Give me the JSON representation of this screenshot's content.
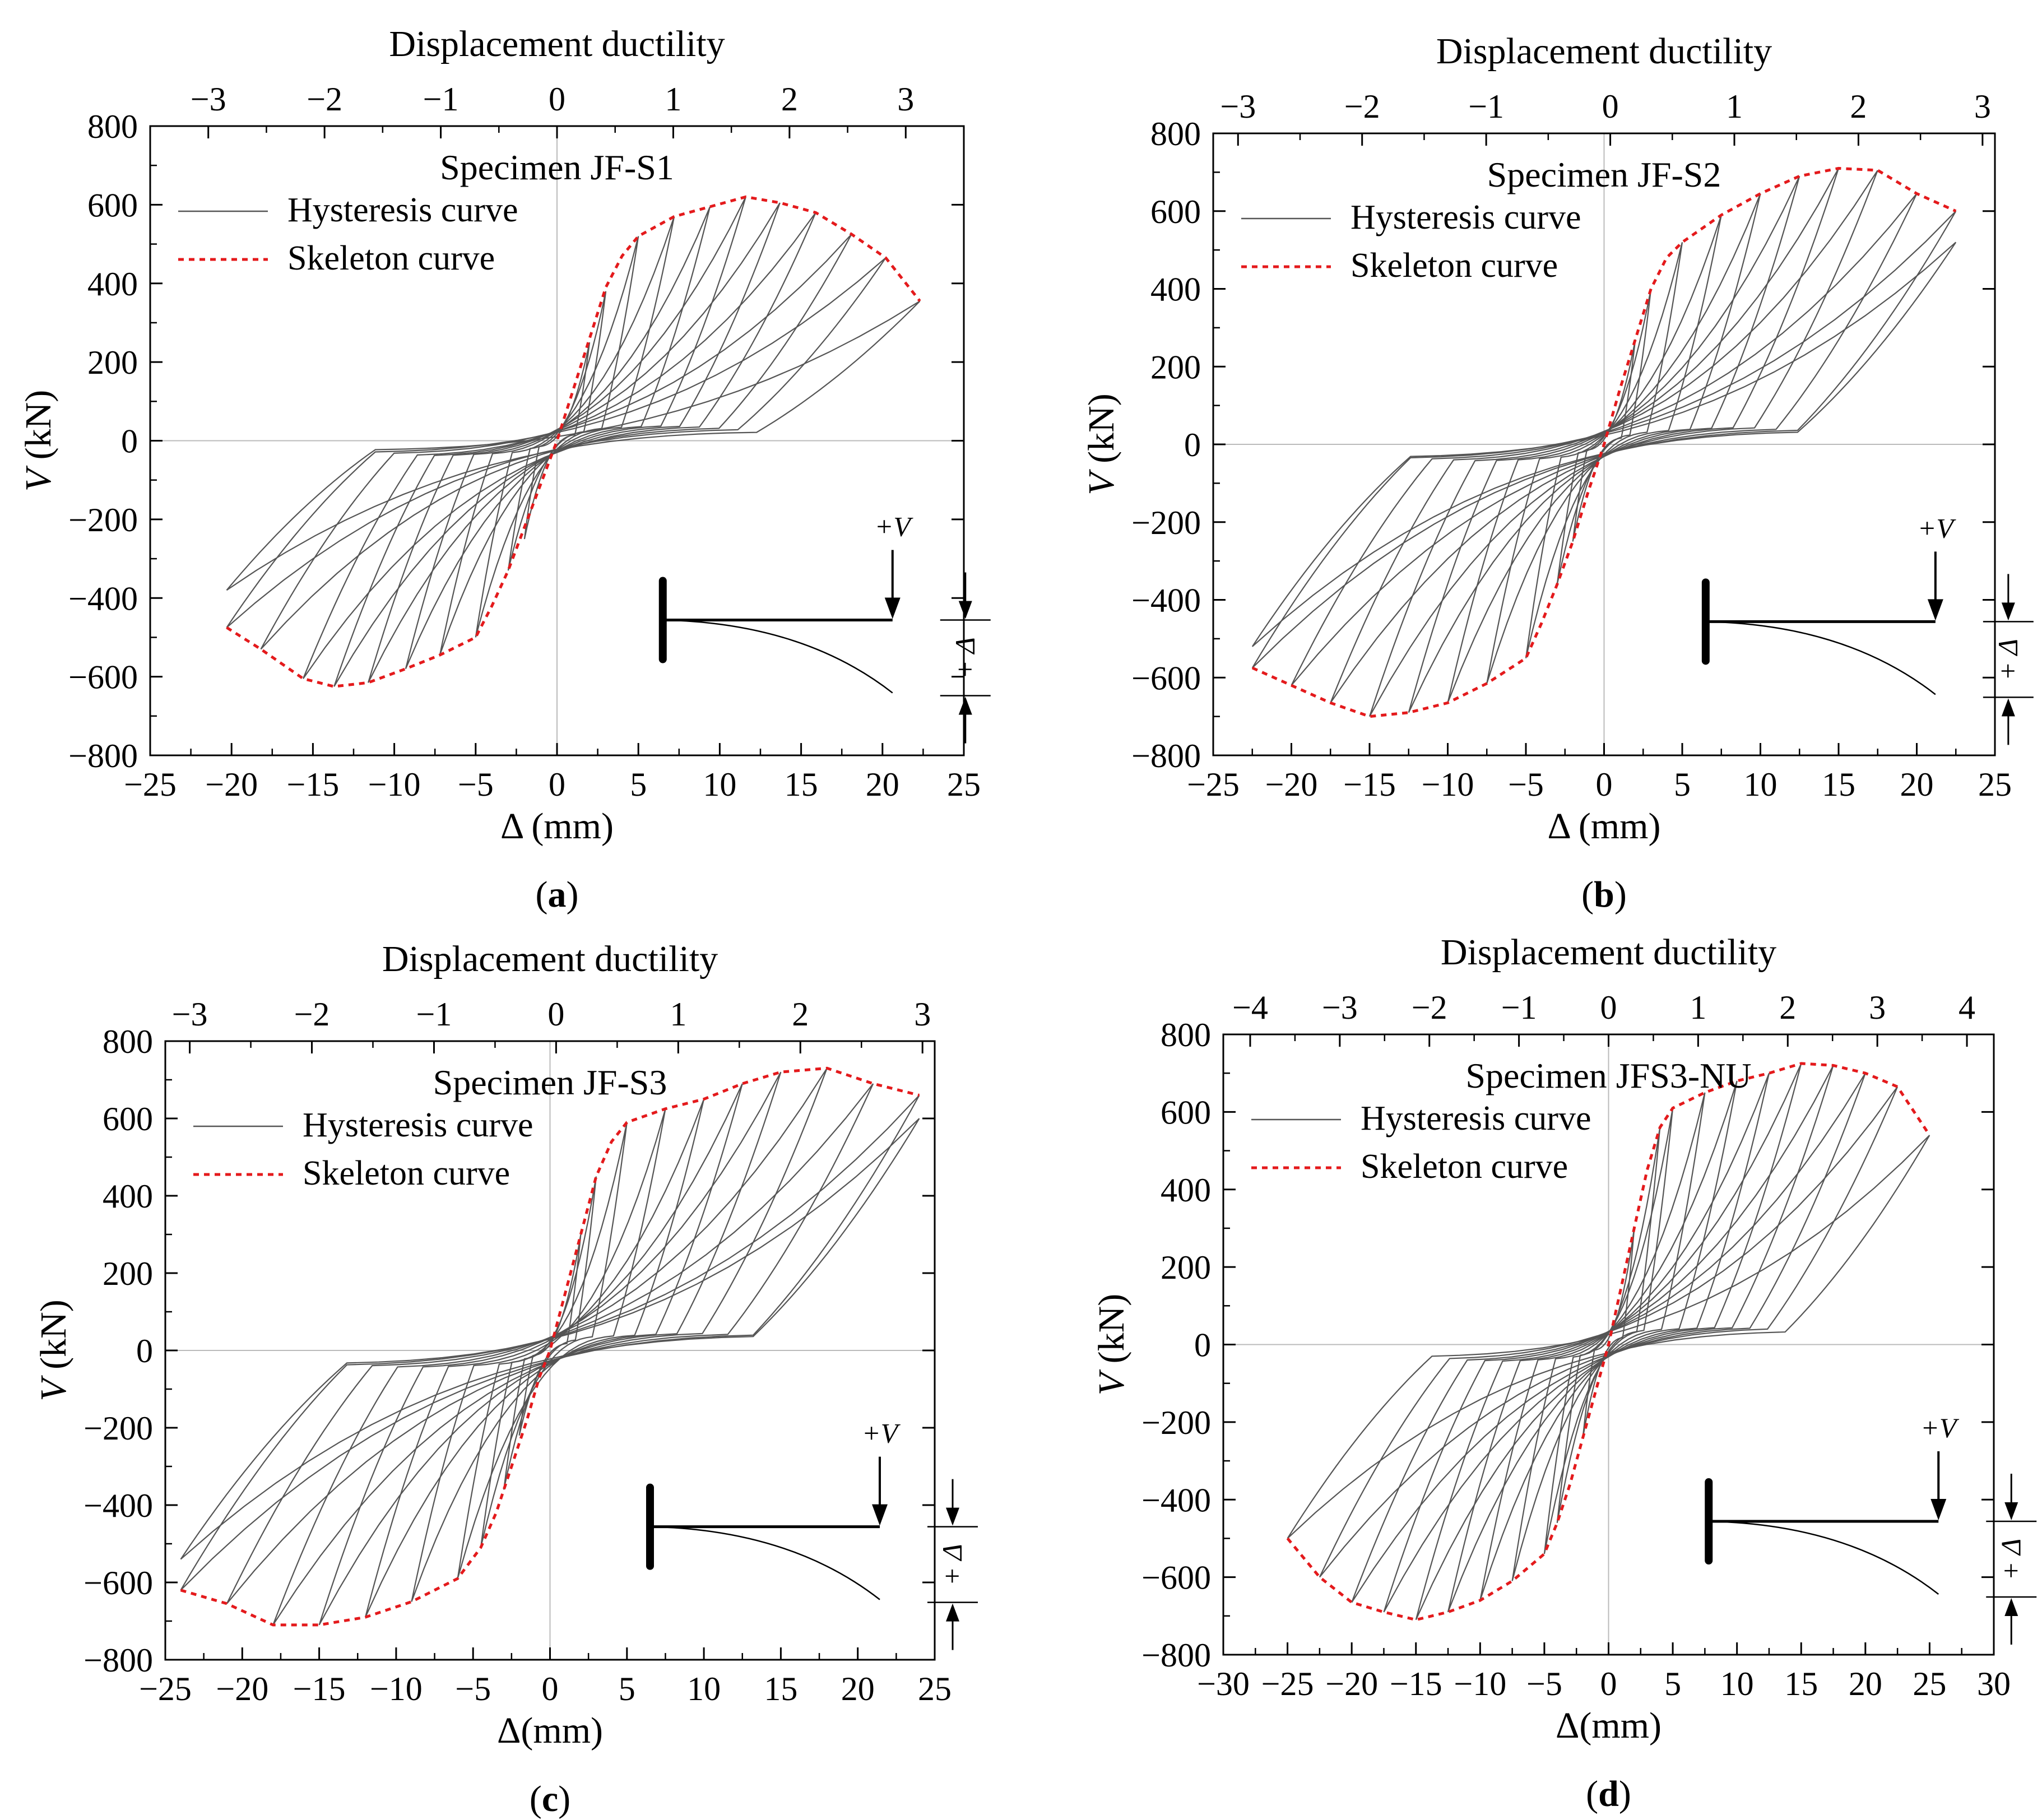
{
  "colors": {
    "hysteresis": "#555555",
    "skeleton": "#e41a1c",
    "zero_line": "#bbbbbb",
    "axes": "#000000"
  },
  "chart_data": [
    {
      "type": "line",
      "id": "a",
      "title": "Specimen JF-S1",
      "panel_label": "a",
      "xlabel_top": "Displacement ductility",
      "ylabel_var": "V",
      "ylabel_unit": " (kN)",
      "xlabel": "Δ (mm)",
      "xlim": [
        -25,
        25
      ],
      "ylim": [
        -800,
        800
      ],
      "top_xlim": [
        -3.5,
        3.5
      ],
      "x_ticks": [
        -25,
        -20,
        -15,
        -10,
        -5,
        0,
        5,
        10,
        15,
        20,
        25
      ],
      "y_ticks": [
        -800,
        -600,
        -400,
        -200,
        0,
        200,
        400,
        600,
        800
      ],
      "top_ticks": [
        -3,
        -2,
        -1,
        0,
        1,
        2,
        3
      ],
      "legend": [
        "Hysteresis curve",
        "Skeleton curve"
      ],
      "skeleton": {
        "x": [
          -20.3,
          -18.2,
          -15.6,
          -13.7,
          -11.6,
          -9.3,
          -7.2,
          -5.0,
          -4.0,
          -3.0,
          -2.0,
          -1.0,
          0,
          1.0,
          2.0,
          3.0,
          4.0,
          5.0,
          7.2,
          9.4,
          11.6,
          13.7,
          15.9,
          18.1,
          20.2,
          22.3
        ],
        "y": [
          -475,
          -530,
          -605,
          -625,
          -615,
          -580,
          -545,
          -500,
          -420,
          -330,
          -220,
          -110,
          0,
          130,
          260,
          390,
          470,
          520,
          570,
          595,
          620,
          605,
          580,
          525,
          465,
          355
        ]
      },
      "loops": [
        {
          "peak_pos": [
            2.0,
            250
          ],
          "peak_neg": [
            -2.0,
            -250
          ]
        },
        {
          "peak_pos": [
            3.0,
            380
          ],
          "peak_neg": [
            -3.0,
            -330
          ]
        },
        {
          "peak_pos": [
            5.0,
            520
          ],
          "peak_neg": [
            -5.0,
            -500
          ]
        },
        {
          "peak_pos": [
            7.2,
            570
          ],
          "peak_neg": [
            -7.2,
            -545
          ]
        },
        {
          "peak_pos": [
            9.4,
            595
          ],
          "peak_neg": [
            -9.3,
            -580
          ]
        },
        {
          "peak_pos": [
            11.6,
            620
          ],
          "peak_neg": [
            -11.6,
            -615
          ]
        },
        {
          "peak_pos": [
            13.7,
            605
          ],
          "peak_neg": [
            -13.7,
            -625
          ]
        },
        {
          "peak_pos": [
            15.9,
            580
          ],
          "peak_neg": [
            -15.6,
            -605
          ]
        },
        {
          "peak_pos": [
            18.1,
            525
          ],
          "peak_neg": [
            -18.2,
            -530
          ]
        },
        {
          "peak_pos": [
            20.2,
            465
          ],
          "peak_neg": [
            -20.3,
            -475
          ]
        },
        {
          "peak_pos": [
            22.3,
            355
          ],
          "peak_neg": [
            -20.3,
            -380
          ]
        }
      ],
      "diagram": {
        "load_label": "+V",
        "disp_label": "+ Δ"
      }
    },
    {
      "type": "line",
      "id": "b",
      "title": "Specimen JF-S2",
      "panel_label": "b",
      "xlabel_top": "Displacement ductility",
      "ylabel_var": "V",
      "ylabel_unit": " (kN)",
      "xlabel": "Δ (mm)",
      "xlim": [
        -25,
        25
      ],
      "ylim": [
        -800,
        800
      ],
      "top_xlim": [
        -3.2,
        3.1
      ],
      "x_ticks": [
        -25,
        -20,
        -15,
        -10,
        -5,
        0,
        5,
        10,
        15,
        20,
        25
      ],
      "y_ticks": [
        -800,
        -600,
        -400,
        -200,
        0,
        200,
        400,
        600,
        800
      ],
      "top_ticks": [
        -3,
        -2,
        -1,
        0,
        1,
        2,
        3
      ],
      "legend": [
        "Hysteresis curve",
        "Skeleton curve"
      ],
      "skeleton": {
        "x": [
          -22.5,
          -20.0,
          -17.5,
          -15.0,
          -12.5,
          -10.0,
          -7.5,
          -5.0,
          -4.0,
          -3.0,
          -2.0,
          -1.0,
          0,
          1.0,
          2.0,
          3.0,
          4.0,
          5.0,
          7.5,
          10.0,
          12.5,
          15.0,
          17.5,
          20.0,
          22.5
        ],
        "y": [
          -575,
          -620,
          -665,
          -700,
          -690,
          -665,
          -615,
          -550,
          -460,
          -360,
          -250,
          -120,
          0,
          140,
          270,
          400,
          480,
          520,
          590,
          645,
          690,
          710,
          705,
          645,
          600
        ]
      },
      "loops": [
        {
          "peak_pos": [
            2.0,
            270
          ],
          "peak_neg": [
            -2.0,
            -250
          ]
        },
        {
          "peak_pos": [
            3.0,
            400
          ],
          "peak_neg": [
            -3.0,
            -360
          ]
        },
        {
          "peak_pos": [
            5.0,
            520
          ],
          "peak_neg": [
            -5.0,
            -550
          ]
        },
        {
          "peak_pos": [
            7.5,
            590
          ],
          "peak_neg": [
            -7.5,
            -615
          ]
        },
        {
          "peak_pos": [
            10.0,
            645
          ],
          "peak_neg": [
            -10.0,
            -665
          ]
        },
        {
          "peak_pos": [
            12.5,
            690
          ],
          "peak_neg": [
            -12.5,
            -690
          ]
        },
        {
          "peak_pos": [
            15.0,
            710
          ],
          "peak_neg": [
            -15.0,
            -700
          ]
        },
        {
          "peak_pos": [
            17.5,
            705
          ],
          "peak_neg": [
            -17.5,
            -665
          ]
        },
        {
          "peak_pos": [
            20.0,
            645
          ],
          "peak_neg": [
            -20.0,
            -620
          ]
        },
        {
          "peak_pos": [
            22.5,
            600
          ],
          "peak_neg": [
            -22.5,
            -575
          ]
        },
        {
          "peak_pos": [
            22.5,
            520
          ],
          "peak_neg": [
            -22.5,
            -520
          ]
        }
      ],
      "diagram": {
        "load_label": "+V",
        "disp_label": "+ Δ"
      }
    },
    {
      "type": "line",
      "id": "c",
      "title": "Specimen JF-S3",
      "panel_label": "c",
      "xlabel_top": "Displacement ductility",
      "ylabel_var": "V",
      "ylabel_unit": " (kN)",
      "xlabel": "Δ(mm)",
      "xlim": [
        -25,
        25
      ],
      "ylim": [
        -800,
        800
      ],
      "top_xlim": [
        -3.2,
        3.1
      ],
      "x_ticks": [
        -25,
        -20,
        -15,
        -10,
        -5,
        0,
        5,
        10,
        15,
        20,
        25
      ],
      "y_ticks": [
        -800,
        -600,
        -400,
        -200,
        0,
        200,
        400,
        600,
        800
      ],
      "top_ticks": [
        -3,
        -2,
        -1,
        0,
        1,
        2,
        3
      ],
      "legend": [
        "Hysteresis curve",
        "Skeleton curve"
      ],
      "skeleton": {
        "x": [
          -24.0,
          -21.0,
          -18.0,
          -15.0,
          -12.0,
          -9.0,
          -6.0,
          -4.5,
          -3.5,
          -2.5,
          -1.5,
          -0.7,
          0,
          1.0,
          2.0,
          3.0,
          4.0,
          5.0,
          7.5,
          10.0,
          12.5,
          15.0,
          18.0,
          21.0,
          24.0
        ],
        "y": [
          -620,
          -655,
          -710,
          -710,
          -690,
          -650,
          -590,
          -510,
          -420,
          -300,
          -180,
          -70,
          0,
          150,
          300,
          450,
          540,
          590,
          625,
          650,
          690,
          720,
          730,
          690,
          660
        ]
      },
      "loops": [
        {
          "peak_pos": [
            2.0,
            300
          ],
          "peak_neg": [
            -2.0,
            -220
          ]
        },
        {
          "peak_pos": [
            3.0,
            450
          ],
          "peak_neg": [
            -3.0,
            -360
          ]
        },
        {
          "peak_pos": [
            5.0,
            590
          ],
          "peak_neg": [
            -4.5,
            -510
          ]
        },
        {
          "peak_pos": [
            7.5,
            625
          ],
          "peak_neg": [
            -6.0,
            -590
          ]
        },
        {
          "peak_pos": [
            10.0,
            650
          ],
          "peak_neg": [
            -9.0,
            -650
          ]
        },
        {
          "peak_pos": [
            12.5,
            690
          ],
          "peak_neg": [
            -12.0,
            -690
          ]
        },
        {
          "peak_pos": [
            15.0,
            720
          ],
          "peak_neg": [
            -15.0,
            -710
          ]
        },
        {
          "peak_pos": [
            18.0,
            730
          ],
          "peak_neg": [
            -18.0,
            -710
          ]
        },
        {
          "peak_pos": [
            21.0,
            690
          ],
          "peak_neg": [
            -21.0,
            -655
          ]
        },
        {
          "peak_pos": [
            24.0,
            660
          ],
          "peak_neg": [
            -24.0,
            -620
          ]
        },
        {
          "peak_pos": [
            24.0,
            600
          ],
          "peak_neg": [
            -24.0,
            -540
          ]
        }
      ],
      "diagram": {
        "load_label": "+V",
        "disp_label": "+ Δ"
      }
    },
    {
      "type": "line",
      "id": "d",
      "title": "Specimen JFS3-NU",
      "panel_label": "d",
      "xlabel_top": "Displacement ductility",
      "ylabel_var": "V",
      "ylabel_unit": " (kN)",
      "xlabel": "Δ(mm)",
      "xlim": [
        -30,
        30
      ],
      "ylim": [
        -800,
        800
      ],
      "top_xlim": [
        -4.3,
        4.3
      ],
      "x_ticks": [
        -30,
        -25,
        -20,
        -15,
        -10,
        -5,
        0,
        5,
        10,
        15,
        20,
        25,
        30
      ],
      "y_ticks": [
        -800,
        -600,
        -400,
        -200,
        0,
        200,
        400,
        600,
        800
      ],
      "top_ticks": [
        -4,
        -3,
        -2,
        -1,
        0,
        1,
        2,
        3,
        4
      ],
      "legend": [
        "Hysteresis curve",
        "Skeleton curve"
      ],
      "skeleton": {
        "x": [
          -25.0,
          -22.5,
          -20.0,
          -17.5,
          -15.0,
          -12.5,
          -10.0,
          -7.5,
          -5.0,
          -4.0,
          -3.0,
          -2.0,
          -1.0,
          0,
          1.0,
          2.0,
          3.0,
          4.0,
          5.0,
          7.5,
          10.0,
          12.5,
          15.0,
          17.5,
          20.0,
          22.5,
          25.0
        ],
        "y": [
          -500,
          -600,
          -665,
          -690,
          -710,
          -690,
          -660,
          -610,
          -540,
          -460,
          -360,
          -240,
          -120,
          0,
          150,
          300,
          450,
          560,
          610,
          650,
          680,
          700,
          725,
          720,
          700,
          665,
          540
        ]
      },
      "loops": [
        {
          "peak_pos": [
            2.0,
            300
          ],
          "peak_neg": [
            -2.0,
            -240
          ]
        },
        {
          "peak_pos": [
            4.0,
            560
          ],
          "peak_neg": [
            -4.0,
            -460
          ]
        },
        {
          "peak_pos": [
            5.0,
            610
          ],
          "peak_neg": [
            -5.0,
            -540
          ]
        },
        {
          "peak_pos": [
            7.5,
            650
          ],
          "peak_neg": [
            -7.5,
            -610
          ]
        },
        {
          "peak_pos": [
            10.0,
            680
          ],
          "peak_neg": [
            -10.0,
            -660
          ]
        },
        {
          "peak_pos": [
            12.5,
            700
          ],
          "peak_neg": [
            -12.5,
            -690
          ]
        },
        {
          "peak_pos": [
            15.0,
            725
          ],
          "peak_neg": [
            -15.0,
            -710
          ]
        },
        {
          "peak_pos": [
            17.5,
            720
          ],
          "peak_neg": [
            -17.5,
            -690
          ]
        },
        {
          "peak_pos": [
            20.0,
            700
          ],
          "peak_neg": [
            -20.0,
            -665
          ]
        },
        {
          "peak_pos": [
            22.5,
            665
          ],
          "peak_neg": [
            -22.5,
            -600
          ]
        },
        {
          "peak_pos": [
            25.0,
            540
          ],
          "peak_neg": [
            -25.0,
            -500
          ]
        }
      ],
      "diagram": {
        "load_label": "+V",
        "disp_label": "+ Δ"
      }
    }
  ]
}
